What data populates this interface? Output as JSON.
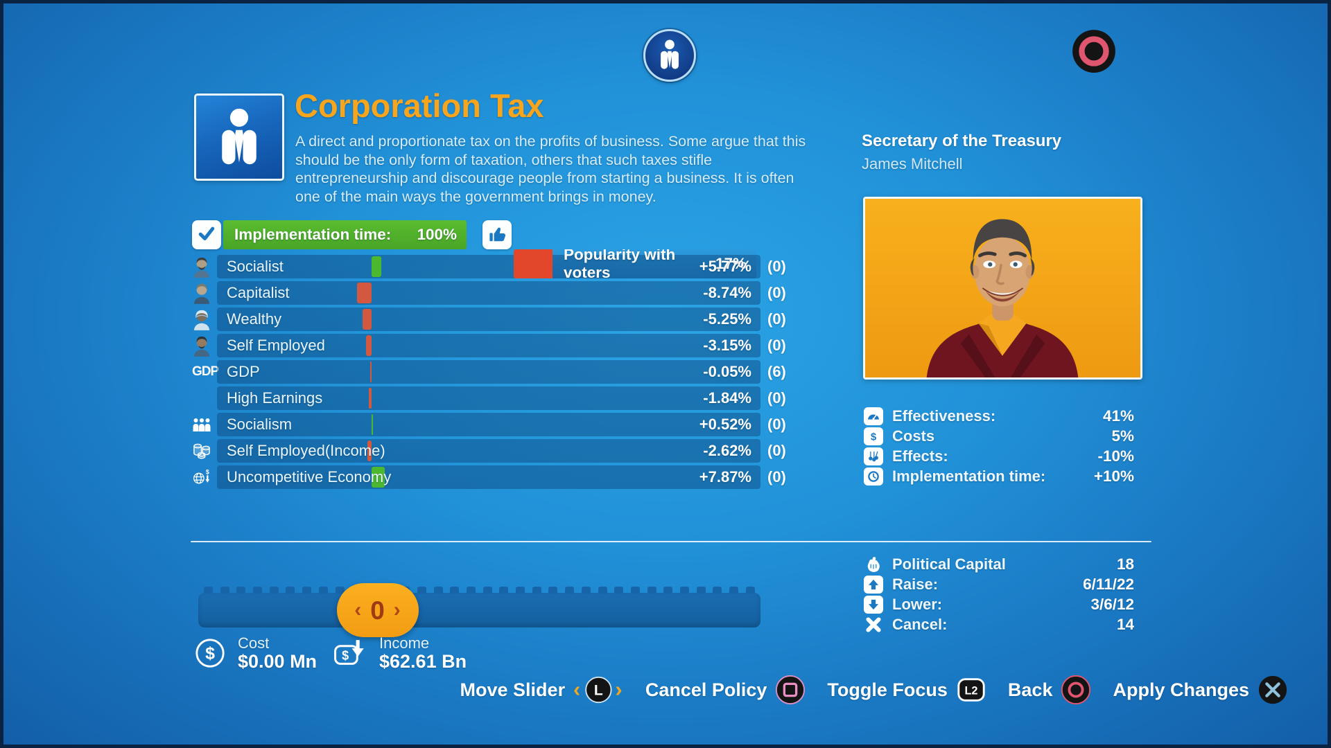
{
  "colors": {
    "header_green": "#50b02a",
    "header_red": "#e2472c",
    "marker_green": "#4cb830",
    "marker_red": "#d2593f",
    "handle_orange": "#f6a71c",
    "title_orange": "#f7a51d"
  },
  "top": {
    "policy_badge_icon": "businessman-icon",
    "corner_button_icon": "ps-circle-icon"
  },
  "policy": {
    "icon": "businessman-icon",
    "title": "Corporation Tax",
    "description": "A direct and proportionate tax on the profits of business. Some argue that this should be the only form of taxation, others that such taxes stifle entrepreneurship and discourage people from starting a business. It is often one of the main ways the government brings in money."
  },
  "headers": {
    "implementation": {
      "icon": "checkbox-icon",
      "label": "Implementation time:",
      "value": "100%"
    },
    "popularity": {
      "icon": "thumbs-up-icon",
      "label": "Popularity with voters",
      "value": "17%",
      "fill_pct": 16
    }
  },
  "effects": {
    "rows": [
      {
        "icon": "avatar-socialist-icon",
        "label": "Socialist",
        "value": "+5.77%",
        "count": "(0)"
      },
      {
        "icon": "avatar-capitalist-icon",
        "label": "Capitalist",
        "value": "-8.74%",
        "count": "(0)"
      },
      {
        "icon": "avatar-wealthy-icon",
        "label": "Wealthy",
        "value": "-5.25%",
        "count": "(0)"
      },
      {
        "icon": "avatar-self-employed-icon",
        "label": "Self Employed",
        "value": "-3.15%",
        "count": "(0)"
      },
      {
        "icon": "gdp-text-icon",
        "label": "GDP",
        "value": "-0.05%",
        "count": "(6)"
      },
      {
        "icon": "",
        "label": "High Earnings",
        "value": "-1.84%",
        "count": "(0)"
      },
      {
        "icon": "people-group-icon",
        "label": "Socialism",
        "value": "+0.52%",
        "count": "(0)"
      },
      {
        "icon": "coins-icon",
        "label": "Self Employed(Income)",
        "value": "-2.62%",
        "count": "(0)"
      },
      {
        "icon": "globe-dollar-icon",
        "label": "Uncompetitive Economy",
        "value": "+7.87%",
        "count": "(0)"
      }
    ]
  },
  "minister": {
    "role": "Secretary of the Treasury",
    "name": "James Mitchell",
    "portrait": "minister-portrait"
  },
  "stats": {
    "rows": [
      {
        "icon": "effectiveness-icon",
        "boxed": true,
        "label": "Effectiveness:",
        "value": "41%"
      },
      {
        "icon": "costs-icon",
        "boxed": true,
        "label": "Costs",
        "value": "5%"
      },
      {
        "icon": "effects-icon",
        "boxed": true,
        "label": "Effects:",
        "value": "-10%"
      },
      {
        "icon": "implementation-time-icon",
        "boxed": true,
        "label": "Implementation time:",
        "value": "+10%"
      }
    ]
  },
  "political": {
    "rows": [
      {
        "icon": "political-capital-icon",
        "boxed": false,
        "label": "Political Capital",
        "value": "18"
      },
      {
        "icon": "raise-icon",
        "boxed": true,
        "label": "Raise:",
        "value": "6/11/22"
      },
      {
        "icon": "lower-icon",
        "boxed": true,
        "label": "Lower:",
        "value": "3/6/12"
      },
      {
        "icon": "cancel-icon",
        "boxed": false,
        "label": "Cancel:",
        "value": "14"
      }
    ]
  },
  "slider": {
    "value": "0",
    "left_chevron": "‹",
    "right_chevron": "›",
    "position_pct": 24.6
  },
  "cost": {
    "icon": "dollar-circle-icon",
    "label": "Cost",
    "value": "$0.00 Mn"
  },
  "income": {
    "icon": "income-icon",
    "label": "Income",
    "value": "$62.61 Bn"
  },
  "actions": [
    {
      "label": "Move Slider",
      "button": "l-stick-icon"
    },
    {
      "label": "Cancel Policy",
      "button": "ps-square-icon"
    },
    {
      "label": "Toggle Focus",
      "button": "l2-icon"
    },
    {
      "label": "Back",
      "button": "ps-circle-small-icon"
    },
    {
      "label": "Apply Changes",
      "button": "ps-cross-icon"
    }
  ]
}
